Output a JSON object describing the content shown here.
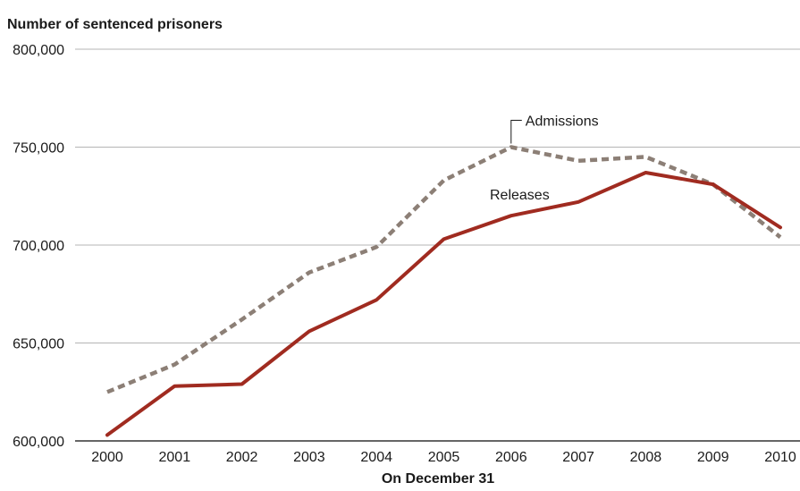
{
  "chart_data": {
    "type": "line",
    "title": "",
    "ylabel": "Number of sentenced prisoners",
    "xlabel": "On December 31",
    "ylim": [
      600000,
      800000
    ],
    "grid": true,
    "yticks": [
      600000,
      650000,
      700000,
      750000,
      800000
    ],
    "ytick_labels": [
      "600,000",
      "650,000",
      "700,000",
      "750,000",
      "800,000"
    ],
    "categories": [
      "2000",
      "2001",
      "2002",
      "2003",
      "2004",
      "2005",
      "2006",
      "2007",
      "2008",
      "2009",
      "2010"
    ],
    "series": [
      {
        "name": "Admissions",
        "style": "dashed",
        "color": "#8c7f76",
        "values": [
          625000,
          639000,
          662000,
          686000,
          699000,
          733000,
          750000,
          743000,
          745000,
          731000,
          704000
        ]
      },
      {
        "name": "Releases",
        "style": "solid",
        "color": "#a02b20",
        "values": [
          603000,
          628000,
          629000,
          656000,
          672000,
          703000,
          715000,
          722000,
          737000,
          731000,
          709000
        ]
      }
    ]
  }
}
